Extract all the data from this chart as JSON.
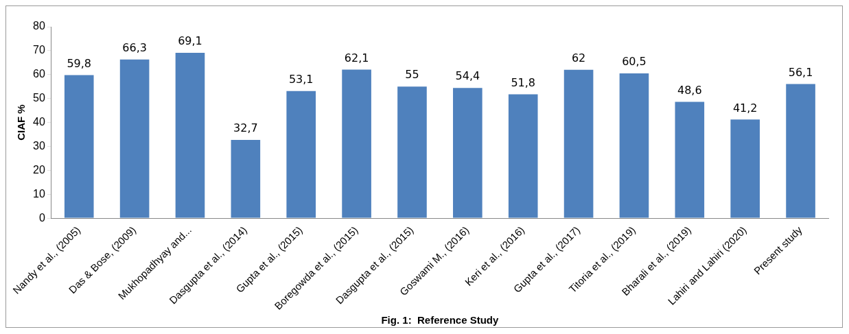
{
  "chart_data": {
    "type": "bar",
    "xlabel": "Fig. 1:  Reference Study",
    "ylabel": "CIAF %",
    "categories": [
      "Nandy et al., (2005)",
      "Das & Bose, (2009)",
      "Mukhopadhyay and...",
      "Dasgupta et al., (2014)",
      "Gupta et al., (2015)",
      "Boregowda et al., (2015)",
      "Dasgupta et al., (2015)",
      "Goswami M., (2016)",
      "Keri et al., (2016)",
      "Gupta et al., (2017)",
      "Titoria et al., (2019)",
      "Bharali et al., (2019)",
      "Lahiri and Lahiri (2020)",
      "Present study"
    ],
    "values": [
      59.8,
      66.3,
      69.1,
      32.7,
      53.1,
      62.1,
      55,
      54.4,
      51.8,
      62,
      60.5,
      48.6,
      41.2,
      56.1
    ],
    "value_labels": [
      "59,8",
      "66,3",
      "69,1",
      "32,7",
      "53,1",
      "62,1",
      "55",
      "54,4",
      "51,8",
      "62",
      "60,5",
      "48,6",
      "41,2",
      "56,1"
    ],
    "color": "#4f81bd",
    "ylim": [
      0,
      80
    ],
    "yticks": [
      0,
      10,
      20,
      30,
      40,
      50,
      60,
      70,
      80
    ],
    "grid": false,
    "legend": false
  }
}
